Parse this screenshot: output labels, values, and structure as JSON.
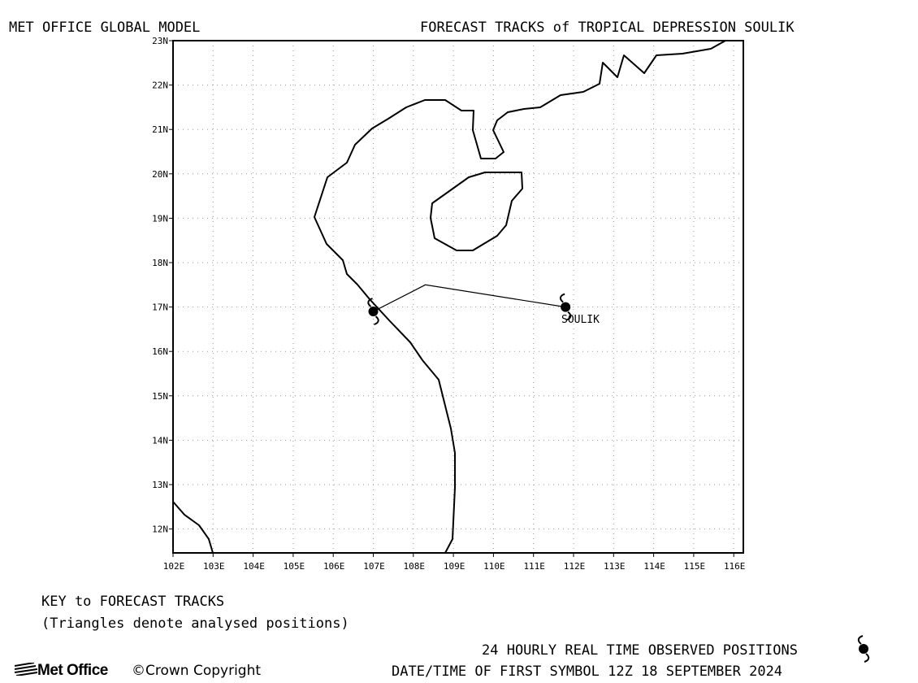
{
  "header": {
    "left_title": "MET OFFICE GLOBAL MODEL",
    "right_title": "FORECAST TRACKS of TROPICAL DEPRESSION SOULIK"
  },
  "map": {
    "lat_ticks": [
      "23N",
      "22N",
      "21N",
      "20N",
      "19N",
      "18N",
      "17N",
      "16N",
      "15N",
      "14N",
      "13N",
      "12N"
    ],
    "lon_ticks": [
      "102E",
      "103E",
      "104E",
      "105E",
      "106E",
      "107E",
      "108E",
      "109E",
      "110E",
      "111E",
      "112E",
      "113E",
      "114E",
      "115E",
      "116E"
    ],
    "storm_label": "SOULIK",
    "track": [
      {
        "lon": 111.8,
        "lat": 17.0
      },
      {
        "lon": 108.3,
        "lat": 17.5
      },
      {
        "lon": 107.0,
        "lat": 16.9
      }
    ],
    "track_color": "#000000",
    "grid": true
  },
  "key": {
    "title": "KEY to FORECAST TRACKS",
    "subtitle": "(Triangles denote analysed positions)"
  },
  "footer": {
    "observed_label": "24 HOURLY REAL TIME OBSERVED POSITIONS",
    "datetime_label": "DATE/TIME OF FIRST SYMBOL 12Z 18 SEPTEMBER 2024",
    "logo_text": "Met Office",
    "copyright": "©Crown Copyright"
  }
}
